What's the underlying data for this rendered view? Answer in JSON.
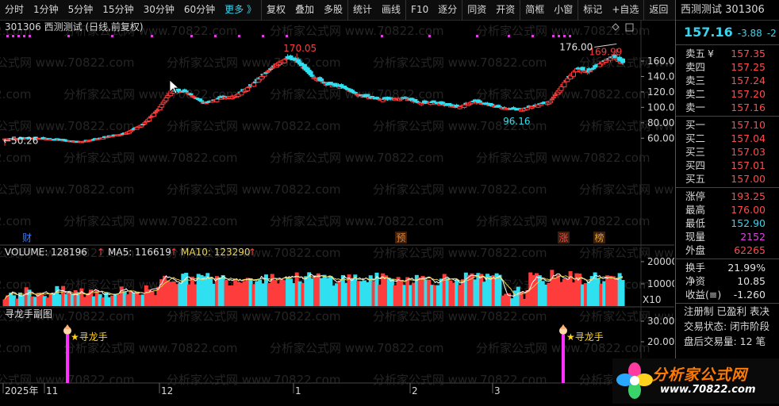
{
  "toolbar": {
    "items": [
      "分时",
      "1分钟",
      "5分钟",
      "15分钟",
      "30分钟",
      "60分钟",
      "更多 》",
      "复权",
      "叠加",
      "多股",
      "统计",
      "画线",
      "F10",
      "逐分",
      "同资",
      "开资",
      "简框",
      "小窗",
      "标记",
      "+自选",
      "返回"
    ]
  },
  "main": {
    "title": "301306 西测测试 (日线,前复权)",
    "high_label": "170.05",
    "high2_label": "169.99",
    "max_label": "176.00",
    "low_label": "96.16",
    "start_low_label": "50.26",
    "axis_ticks": [
      "160.00",
      "140.00",
      "120.00",
      "100.00",
      "80.00",
      "60.00"
    ],
    "markers": {
      "cai": "财",
      "yu": "预",
      "zhang": "涨",
      "bang": "榜"
    }
  },
  "volume": {
    "label": "VOLUME: 128196",
    "ma5": "MA5: 116619",
    "ma10": "MA10: 123290",
    "arrow": "↑",
    "ticks": [
      "20000",
      "10000"
    ],
    "unit": "X10",
    "colors": {
      "up": "#ff3c3c",
      "down": "#2ee0f0",
      "ma5": "#ffffff",
      "ma10": "#e8d35a"
    }
  },
  "indicator": {
    "title": "寻龙手副图",
    "signal_label": "★寻龙手",
    "ticks": [
      "30.00",
      "20.00"
    ]
  },
  "time_axis": [
    "2025年",
    "11",
    "12",
    "1",
    "2",
    "3"
  ],
  "quote": {
    "name": "西测测试",
    "code": "301306",
    "price": "157.16",
    "change": "-3.88",
    "change_pct": "-2",
    "ask": [
      {
        "label": "卖五",
        "mark": "¥",
        "price": "157.35"
      },
      {
        "label": "卖四",
        "mark": "",
        "price": "157.25"
      },
      {
        "label": "卖三",
        "mark": "",
        "price": "157.24"
      },
      {
        "label": "卖二",
        "mark": "",
        "price": "157.20"
      },
      {
        "label": "卖一",
        "mark": "",
        "price": "157.16"
      }
    ],
    "bid": [
      {
        "label": "买一",
        "price": "157.10"
      },
      {
        "label": "买二",
        "price": "157.04"
      },
      {
        "label": "买三",
        "price": "157.03"
      },
      {
        "label": "买四",
        "price": "157.01"
      },
      {
        "label": "买五",
        "price": "157.00"
      }
    ],
    "stats1": [
      {
        "label": "涨停",
        "value": "193.25",
        "color": "up"
      },
      {
        "label": "最高",
        "value": "176.00",
        "color": "up"
      },
      {
        "label": "最低",
        "value": "152.90",
        "color": "dn"
      },
      {
        "label": "现量",
        "value": "2152",
        "color": "mg"
      },
      {
        "label": "外盘",
        "value": "62265",
        "color": "up"
      }
    ],
    "stats2": [
      {
        "label": "换手",
        "value": "21.99%",
        "color": "wh"
      },
      {
        "label": "净资",
        "value": "10.85",
        "color": "wh"
      },
      {
        "label": "收益(≡)",
        "value": "-1.260",
        "color": "wh"
      }
    ],
    "info": [
      "注册制 已盈利 表决",
      "交易状态: 闭市阶段",
      "盘后交易量: 12 笔"
    ]
  },
  "watermark": "分析家公式网 www.70822.com",
  "logo": {
    "brand": "分析家公式网",
    "url": "www.70822.com"
  }
}
